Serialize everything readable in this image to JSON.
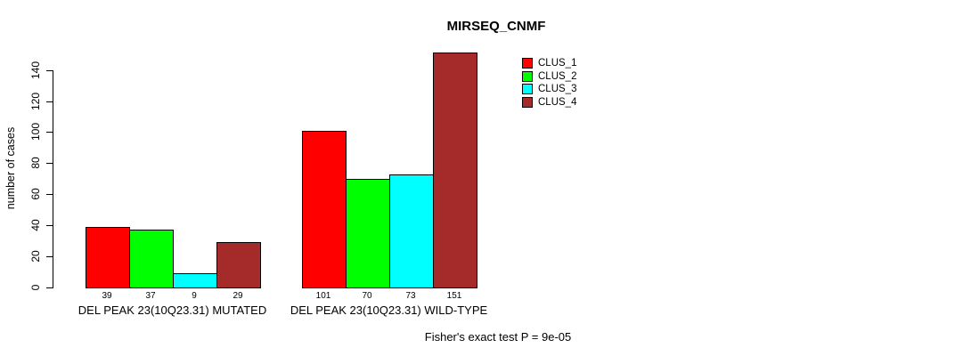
{
  "chart_data": {
    "type": "bar",
    "title": "MIRSEQ_CNMF",
    "ylabel": "number of cases",
    "xlabel": "",
    "categories": [
      "DEL PEAK 23(10Q23.31) MUTATED",
      "DEL PEAK 23(10Q23.31) WILD-TYPE"
    ],
    "series": [
      {
        "name": "CLUS_1",
        "color": "#ff0000",
        "values": [
          39,
          101
        ]
      },
      {
        "name": "CLUS_2",
        "color": "#00ff00",
        "values": [
          37,
          70
        ]
      },
      {
        "name": "CLUS_3",
        "color": "#00ffff",
        "values": [
          9,
          73
        ]
      },
      {
        "name": "CLUS_4",
        "color": "#a52a2a",
        "values": [
          29,
          151
        ]
      }
    ],
    "yticks": [
      0,
      20,
      40,
      60,
      80,
      100,
      120,
      140
    ],
    "ylim": [
      0,
      151
    ],
    "grid": false,
    "legend_position": "top-right",
    "bar_value_labels_shown": true,
    "annotation": "Fisher's exact test P = 9e-05"
  }
}
